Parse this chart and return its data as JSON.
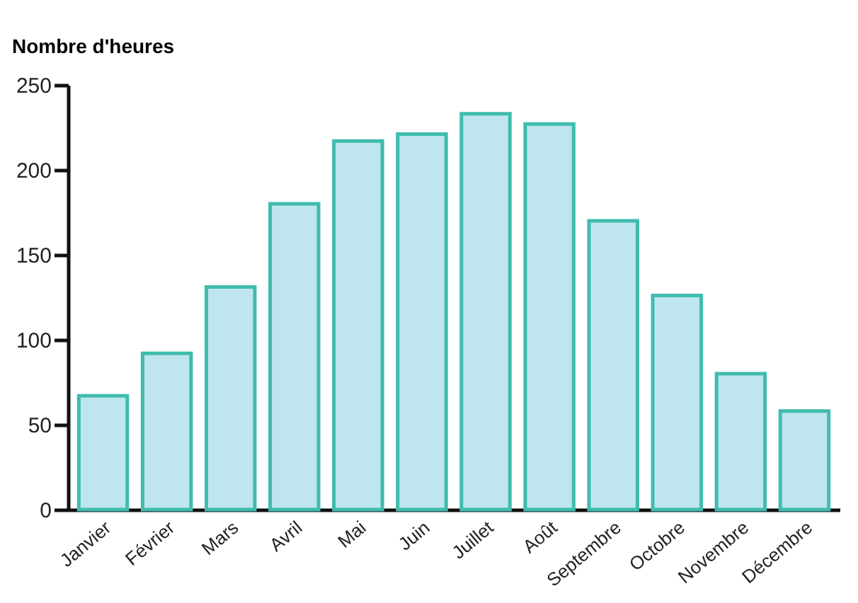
{
  "chart_data": {
    "type": "bar",
    "ylabel": "Nombre d'heures",
    "categories": [
      "Janvier",
      "Février",
      "Mars",
      "Avril",
      "Mai",
      "Juin",
      "Juillet",
      "Août",
      "Septembre",
      "Octobre",
      "Novembre",
      "Décembre"
    ],
    "values": [
      67,
      92,
      131,
      180,
      217,
      221,
      233,
      227,
      170,
      126,
      80,
      58
    ],
    "color": "#bfe5ee",
    "ylim": [
      0,
      250
    ],
    "yticks": [
      0,
      50,
      100,
      150,
      200,
      250
    ],
    "grid": false
  }
}
